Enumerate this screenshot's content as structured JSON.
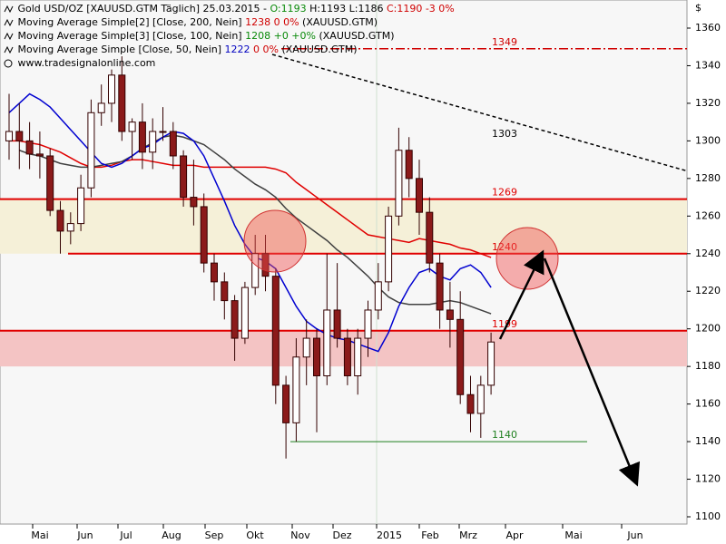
{
  "chart_data": {
    "type": "candlestick",
    "legend": {
      "line1": {
        "text": "Gold USD/OZ [XAUUSD.GTM  Täglich] 25.03.2015 -",
        "open": "O:1193",
        "hl": "H:1193 L:1186",
        "close": "C:1190 -3 0%"
      },
      "line2": {
        "text": "Moving Average Simple[2] [Close, 200, Nein]",
        "value": "1238 0 0%",
        "symbol": "(XAUUSD.GTM)"
      },
      "line3": {
        "text": "Moving Average Simple[3] [Close, 100, Nein]",
        "value": "1208 +0 +0%",
        "symbol": "(XAUUSD.GTM)"
      },
      "line4": {
        "text": "Moving Average Simple [Close, 50, Nein]",
        "value": "1222",
        "change": "0 0%",
        "symbol": "(XAUUSD.GTM)"
      },
      "source": "www.tradesignalonline.com"
    },
    "y_unit": "$",
    "ylim": [
      1100,
      1360
    ],
    "yticks": [
      1100,
      1120,
      1140,
      1160,
      1180,
      1200,
      1220,
      1240,
      1260,
      1280,
      1300,
      1320,
      1340,
      1360
    ],
    "x_labels": [
      "Mai",
      "Jun",
      "Jul",
      "Aug",
      "Sep",
      "Okt",
      "Nov",
      "Dez",
      "2015",
      "Feb",
      "Mrz",
      "Apr",
      "Mai",
      "Jun"
    ],
    "open": [
      1300,
      1305,
      1300,
      1293,
      1292,
      1263,
      1252,
      1256,
      1275,
      1315,
      1320,
      1335,
      1305,
      1310,
      1294,
      1305,
      1305,
      1292,
      1270,
      1265,
      1235,
      1225,
      1215,
      1195,
      1222,
      1240,
      1228,
      1170,
      1150,
      1185,
      1195,
      1175,
      1210,
      1195,
      1175,
      1195,
      1210,
      1225,
      1260,
      1295,
      1280,
      1262,
      1235,
      1210,
      1205,
      1165,
      1155,
      1170
    ],
    "high": [
      1325,
      1320,
      1310,
      1305,
      1296,
      1268,
      1262,
      1282,
      1322,
      1330,
      1338,
      1345,
      1312,
      1320,
      1312,
      1318,
      1310,
      1295,
      1290,
      1272,
      1240,
      1230,
      1218,
      1225,
      1250,
      1250,
      1232,
      1175,
      1195,
      1205,
      1200,
      1240,
      1235,
      1200,
      1200,
      1215,
      1235,
      1265,
      1307,
      1302,
      1290,
      1270,
      1240,
      1225,
      1220,
      1175,
      1175,
      1198
    ],
    "low": [
      1290,
      1285,
      1285,
      1280,
      1260,
      1240,
      1245,
      1252,
      1270,
      1308,
      1310,
      1300,
      1290,
      1285,
      1285,
      1300,
      1285,
      1265,
      1255,
      1230,
      1215,
      1205,
      1183,
      1192,
      1218,
      1220,
      1160,
      1131,
      1140,
      1170,
      1145,
      1170,
      1190,
      1170,
      1165,
      1185,
      1205,
      1220,
      1255,
      1270,
      1250,
      1230,
      1200,
      1190,
      1160,
      1145,
      1142,
      1165
    ],
    "close": [
      1305,
      1300,
      1293,
      1292,
      1263,
      1252,
      1256,
      1275,
      1315,
      1320,
      1335,
      1305,
      1310,
      1294,
      1305,
      1305,
      1292,
      1270,
      1265,
      1235,
      1225,
      1215,
      1195,
      1222,
      1240,
      1228,
      1170,
      1150,
      1185,
      1195,
      1175,
      1210,
      1195,
      1175,
      1195,
      1210,
      1225,
      1260,
      1295,
      1280,
      1262,
      1235,
      1210,
      1205,
      1165,
      1155,
      1170,
      1193
    ],
    "series": [
      {
        "name": "Moving Average Simple[2]",
        "color": "#e00000",
        "values": [
          1300,
          1300,
          1299,
          1298,
          1296,
          1294,
          1291,
          1288,
          1286,
          1286,
          1287,
          1289,
          1290,
          1290,
          1289,
          1288,
          1287,
          1287,
          1287,
          1286,
          1286,
          1286,
          1286,
          1286,
          1286,
          1286,
          1285,
          1283,
          1278,
          1274,
          1270,
          1266,
          1262,
          1258,
          1254,
          1250,
          1249,
          1248,
          1247,
          1246,
          1248,
          1247,
          1246,
          1245,
          1243,
          1242,
          1240,
          1238
        ]
      },
      {
        "name": "Moving Average Simple[3]",
        "color": "#404040",
        "values": [
          null,
          1295,
          1293,
          1292,
          1290,
          1288,
          1287,
          1286,
          1286,
          1287,
          1288,
          1289,
          1292,
          1296,
          1299,
          1302,
          1303,
          1302,
          1300,
          1298,
          1294,
          1290,
          1285,
          1281,
          1277,
          1274,
          1270,
          1264,
          1259,
          1255,
          1251,
          1247,
          1242,
          1238,
          1233,
          1228,
          1222,
          1217,
          1214,
          1213,
          1213,
          1213,
          1214,
          1215,
          1214,
          1212,
          1210,
          1208
        ]
      },
      {
        "name": "Moving Average Simple",
        "color": "#0000d0",
        "values": [
          1315,
          1320,
          1325,
          1322,
          1318,
          1312,
          1306,
          1300,
          1294,
          1288,
          1286,
          1288,
          1292,
          1296,
          1298,
          1302,
          1305,
          1304,
          1300,
          1292,
          1280,
          1268,
          1255,
          1245,
          1238,
          1236,
          1232,
          1222,
          1212,
          1204,
          1200,
          1197,
          1195,
          1194,
          1192,
          1190,
          1188,
          1198,
          1212,
          1222,
          1230,
          1232,
          1228,
          1226,
          1232,
          1234,
          1230,
          1222
        ]
      }
    ],
    "zones": [
      {
        "from": 1240,
        "to": 1269,
        "color": "#f5f0d8"
      },
      {
        "from": 1180,
        "to": 1199,
        "color": "#f4c4c4"
      }
    ],
    "levels": [
      {
        "value": 1349,
        "color": "#d00000",
        "style": "dashdot"
      },
      {
        "value": 1269,
        "color": "#e00000",
        "style": "solid"
      },
      {
        "value": 1240,
        "color": "#e00000",
        "style": "solid"
      },
      {
        "value": 1199,
        "color": "#e00000",
        "style": "solid"
      },
      {
        "value": 1140,
        "color": "#208020",
        "style": "solid"
      }
    ],
    "trendline": {
      "value": 1303,
      "start": 1346,
      "end": 1284
    }
  }
}
